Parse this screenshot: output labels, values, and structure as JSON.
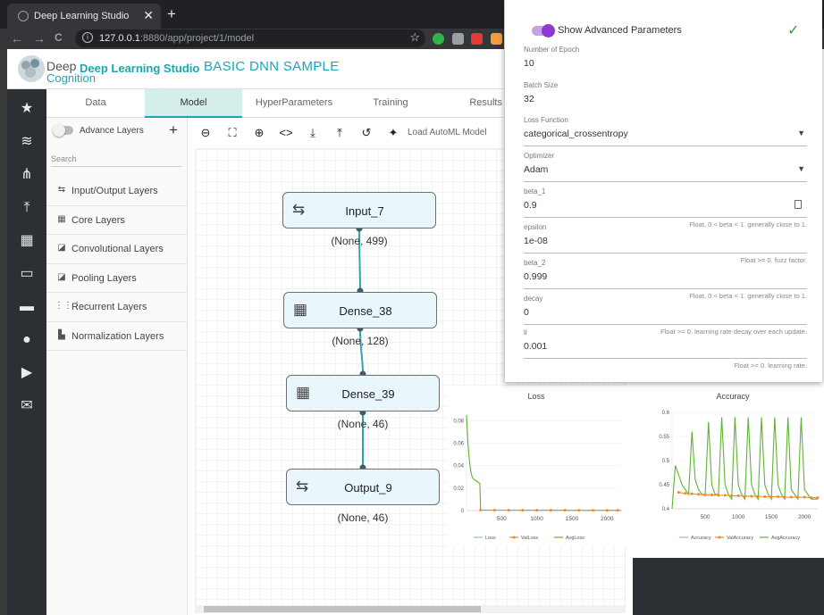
{
  "browser": {
    "tab_title": "Deep Learning Studio",
    "tab_close": "✕",
    "new_tab": "+",
    "url_host": "127.0.0.1",
    "url_path": ":8880/app/project/1/model",
    "back": "←",
    "forward": "→",
    "reload": "C",
    "star": "☆"
  },
  "header": {
    "brand_line1": "Deep",
    "brand_line2": "Cognition",
    "studio": "Deep Learning Studio",
    "project": "BASIC DNN SAMPLE"
  },
  "tabs": [
    "Data",
    "Model",
    "HyperParameters",
    "Training",
    "Results"
  ],
  "active_tab": "Model",
  "layer_panel": {
    "advance_label": "Advance Layers",
    "add": "+",
    "search_placeholder": "Search",
    "items": [
      {
        "label": "Input/Output Layers",
        "icon": "⇆"
      },
      {
        "label": "Core Layers",
        "icon": "▦"
      },
      {
        "label": "Convolutional Layers",
        "icon": "◪"
      },
      {
        "label": "Pooling Layers",
        "icon": "◪"
      },
      {
        "label": "Recurrent Layers",
        "icon": "⋮⋮⋮"
      },
      {
        "label": "Normalization Layers",
        "icon": "▙"
      }
    ]
  },
  "canvas": {
    "automl": "Load AutoML Model",
    "nodes": [
      {
        "name": "Input_7",
        "shape": "(None, 499)",
        "kind": "io"
      },
      {
        "name": "Dense_38",
        "shape": "(None, 128)",
        "kind": "dense"
      },
      {
        "name": "Dense_39",
        "shape": "(None, 46)",
        "kind": "dense"
      },
      {
        "name": "Output_9",
        "shape": "(None, 46)",
        "kind": "io"
      }
    ]
  },
  "params": {
    "show_advanced": "Show Advanced Parameters",
    "fields": [
      {
        "label": "Number of Epoch",
        "value": "10",
        "hint": ""
      },
      {
        "label": "Batch Size",
        "value": "32",
        "hint": ""
      },
      {
        "label": "Loss Function",
        "value": "categorical_crossentropy",
        "hint": "",
        "select": true
      },
      {
        "label": "Optimizer",
        "value": "Adam",
        "hint": "",
        "select": true
      },
      {
        "label": "beta_1",
        "value": "0.9",
        "hint": "Float, 0 < beta < 1. generally close to 1.",
        "clip": true
      },
      {
        "label": "epsilon",
        "value": "1e-08",
        "hint": "Float >= 0. fuzz factor."
      },
      {
        "label": "beta_2",
        "value": "0.999",
        "hint": "Float, 0 < beta < 1. generally close to 1."
      },
      {
        "label": "decay",
        "value": "0",
        "hint": "Float >= 0. learning rate decay over each update."
      },
      {
        "label": "lr",
        "value": "0.001",
        "hint": "Float >= 0. learning rate."
      }
    ]
  },
  "colors": {
    "accent": "#19a7b5",
    "loss": "#90b8e0",
    "val": "#f08a24",
    "avg": "#5fb336"
  },
  "chart_data": [
    {
      "type": "line",
      "title": "Loss",
      "xlim": [
        0,
        2200
      ],
      "ylim": [
        0,
        0.085
      ],
      "x_ticks": [
        500,
        1000,
        1500,
        2000
      ],
      "y_ticks": [
        0,
        0.02,
        0.04,
        0.06,
        0.08
      ],
      "legend": [
        "Loss",
        "ValLoss",
        "AvgLoss"
      ],
      "series": [
        {
          "name": "AvgLoss",
          "x": [
            0,
            20,
            40,
            60,
            80,
            100,
            120,
            150,
            170,
            190,
            200,
            400,
            800,
            1200,
            1600,
            2000,
            2200
          ],
          "y": [
            0.085,
            0.06,
            0.045,
            0.035,
            0.03,
            0.028,
            0.027,
            0.026,
            0.025,
            0.024,
            0.0005,
            0.0004,
            0.0003,
            0.0003,
            0.0002,
            0.0002,
            0.0002
          ]
        },
        {
          "name": "ValLoss",
          "x": [
            200,
            400,
            600,
            800,
            1000,
            1200,
            1400,
            1600,
            1800,
            2000,
            2150
          ],
          "y": [
            0.0005,
            0.0004,
            0.0004,
            0.0003,
            0.0003,
            0.0003,
            0.0003,
            0.0003,
            0.0002,
            0.0002,
            0.0002
          ]
        }
      ]
    },
    {
      "type": "line",
      "title": "Accuracy",
      "xlim": [
        0,
        2200
      ],
      "ylim": [
        0.4,
        0.6
      ],
      "x_ticks": [
        500,
        1000,
        1500,
        2000
      ],
      "y_ticks": [
        0.4,
        0.45,
        0.5,
        0.55,
        0.6
      ],
      "legend": [
        "Accuracy",
        "ValAccuracy",
        "AvgAccuracy"
      ],
      "series": [
        {
          "name": "AvgAccuracy",
          "x": [
            0,
            50,
            100,
            150,
            200,
            250,
            300,
            350,
            400,
            450,
            500,
            550,
            600,
            650,
            700,
            750,
            800,
            850,
            900,
            950,
            1000,
            1050,
            1100,
            1150,
            1200,
            1250,
            1300,
            1350,
            1400,
            1450,
            1500,
            1550,
            1600,
            1650,
            1700,
            1750,
            1800,
            1850,
            1900,
            1950,
            2000,
            2050,
            2100,
            2150,
            2200
          ],
          "y": [
            0.4,
            0.49,
            0.47,
            0.45,
            0.44,
            0.43,
            0.56,
            0.46,
            0.44,
            0.43,
            0.43,
            0.58,
            0.45,
            0.43,
            0.43,
            0.59,
            0.45,
            0.43,
            0.42,
            0.59,
            0.45,
            0.43,
            0.42,
            0.59,
            0.45,
            0.43,
            0.42,
            0.59,
            0.45,
            0.43,
            0.42,
            0.59,
            0.45,
            0.43,
            0.42,
            0.59,
            0.44,
            0.43,
            0.42,
            0.59,
            0.44,
            0.43,
            0.42,
            0.42,
            0.42
          ]
        },
        {
          "name": "ValAccuracy",
          "x": [
            100,
            200,
            300,
            400,
            500,
            600,
            700,
            800,
            900,
            1000,
            1100,
            1200,
            1300,
            1400,
            1500,
            1600,
            1700,
            1800,
            1900,
            2000,
            2100,
            2200
          ],
          "y": [
            0.434,
            0.432,
            0.431,
            0.43,
            0.429,
            0.429,
            0.428,
            0.428,
            0.427,
            0.427,
            0.426,
            0.426,
            0.426,
            0.425,
            0.425,
            0.425,
            0.424,
            0.424,
            0.424,
            0.424,
            0.423,
            0.423
          ]
        }
      ]
    }
  ]
}
